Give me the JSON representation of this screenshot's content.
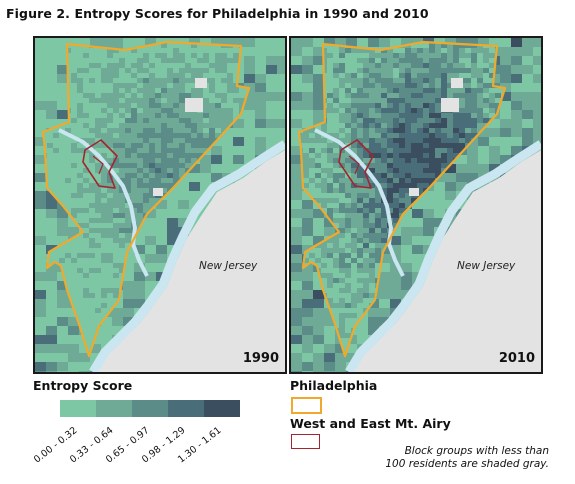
{
  "figure": {
    "title": "Figure 2. Entropy Scores for Philadelphia in 1990 and 2010"
  },
  "maps": [
    {
      "id": "1990",
      "year_label": "1990",
      "state_label": "New Jersey"
    },
    {
      "id": "2010",
      "year_label": "2010",
      "state_label": "New Jersey"
    }
  ],
  "legend": {
    "title": "Entropy Score",
    "classes": [
      {
        "range": "0.00 - 0.32",
        "color": "#7ec7a4"
      },
      {
        "range": "0.33 - 0.64",
        "color": "#6eaa95"
      },
      {
        "range": "0.65 - 0.97",
        "color": "#5c8c88"
      },
      {
        "range": "0.98 - 1.29",
        "color": "#4a6e79"
      },
      {
        "range": "1.30 - 1.61",
        "color": "#3b4e60"
      }
    ]
  },
  "boundaries": [
    {
      "label": "Philadelphia",
      "color": "#f0a92c"
    },
    {
      "label": "West and East Mt. Airy",
      "color": "#a2262f"
    }
  ],
  "note": {
    "line1": "Block groups with less than",
    "line2": "100 residents are shaded gray."
  },
  "colors": {
    "water": "#c9e6f1",
    "nodata": "#e3e3e3"
  }
}
